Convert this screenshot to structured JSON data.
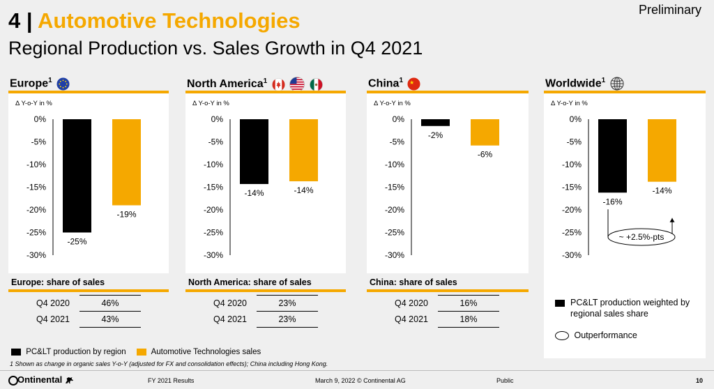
{
  "header": {
    "number": "4",
    "separator": "|",
    "title": "Automotive Technologies",
    "subtitle": "Regional Production vs. Sales Growth in Q4 2021",
    "badge": "Preliminary"
  },
  "colors": {
    "accent": "#f5a800",
    "production": "#000000",
    "sales": "#f5a800"
  },
  "chart_data": [
    {
      "type": "bar",
      "title": "Europe",
      "ylabel": "Δ Y-o-Y in %",
      "ylim": [
        -30,
        0
      ],
      "yticks": [
        "0%",
        "-5%",
        "-10%",
        "-15%",
        "-20%",
        "-25%",
        "-30%"
      ],
      "series": [
        {
          "name": "PC&LT production by region",
          "values": [
            -25
          ],
          "label": "-25%"
        },
        {
          "name": "Automotive Technologies sales",
          "values": [
            -19
          ],
          "label": "-19%"
        }
      ]
    },
    {
      "type": "bar",
      "title": "North America",
      "ylabel": "Δ Y-o-Y in %",
      "ylim": [
        -30,
        0
      ],
      "yticks": [
        "0%",
        "-5%",
        "-10%",
        "-15%",
        "-20%",
        "-25%",
        "-30%"
      ],
      "series": [
        {
          "name": "PC&LT production by region",
          "values": [
            -14.3
          ],
          "label": "-14%"
        },
        {
          "name": "Automotive Technologies sales",
          "values": [
            -13.7
          ],
          "label": "-14%"
        }
      ]
    },
    {
      "type": "bar",
      "title": "China",
      "ylabel": "Δ Y-o-Y in %",
      "ylim": [
        -30,
        0
      ],
      "yticks": [
        "0%",
        "-5%",
        "-10%",
        "-15%",
        "-20%",
        "-25%",
        "-30%"
      ],
      "series": [
        {
          "name": "PC&LT production by region",
          "values": [
            -1.5
          ],
          "label": "-2%"
        },
        {
          "name": "Automotive Technologies sales",
          "values": [
            -5.8
          ],
          "label": "-6%"
        }
      ]
    },
    {
      "type": "bar",
      "title": "Worldwide",
      "ylabel": "Δ Y-o-Y in %",
      "ylim": [
        -30,
        0
      ],
      "yticks": [
        "0%",
        "-5%",
        "-10%",
        "-15%",
        "-20%",
        "-25%",
        "-30%"
      ],
      "series": [
        {
          "name": "PC&LT production weighted by regional sales share",
          "values": [
            -16.2
          ],
          "label": "-16%"
        },
        {
          "name": "Automotive Technologies sales",
          "values": [
            -13.8
          ],
          "label": "-14%"
        }
      ],
      "annotation": "~ +2.5%-pts"
    }
  ],
  "panels": [
    {
      "name": "Europe",
      "sup": "1",
      "share_title": "Europe: share of sales",
      "rows": [
        {
          "label": "Q4 2020",
          "value": "46%"
        },
        {
          "label": "Q4 2021",
          "value": "43%"
        }
      ]
    },
    {
      "name": "North America",
      "sup": "1",
      "share_title": "North America: share of sales",
      "rows": [
        {
          "label": "Q4 2020",
          "value": "23%"
        },
        {
          "label": "Q4 2021",
          "value": "23%"
        }
      ]
    },
    {
      "name": "China",
      "sup": "1",
      "share_title": "China: share of sales",
      "rows": [
        {
          "label": "Q4 2020",
          "value": "16%"
        },
        {
          "label": "Q4 2021",
          "value": "18%"
        }
      ]
    },
    {
      "name": "Worldwide",
      "sup": "1"
    }
  ],
  "worldwide_legend": {
    "production": "PC&LT production weighted by regional sales share",
    "outperformance": "Outperformance"
  },
  "legend": {
    "production": "PC&LT production by region",
    "sales": "Automotive Technologies sales"
  },
  "footnote": "1 Shown as change in organic sales Y-o-Y (adjusted for FX and consolidation effects); China including Hong Kong.",
  "footer": {
    "logo": "Ontinental",
    "report": "FY 2021 Results",
    "date": "March 9, 2022 © Continental AG",
    "classification": "Public",
    "page": "10"
  },
  "icons": [
    "eu-flag-icon",
    "canada-flag-icon",
    "usa-flag-icon",
    "mexico-flag-icon",
    "china-flag-icon",
    "globe-icon",
    "continental-horse-icon"
  ]
}
